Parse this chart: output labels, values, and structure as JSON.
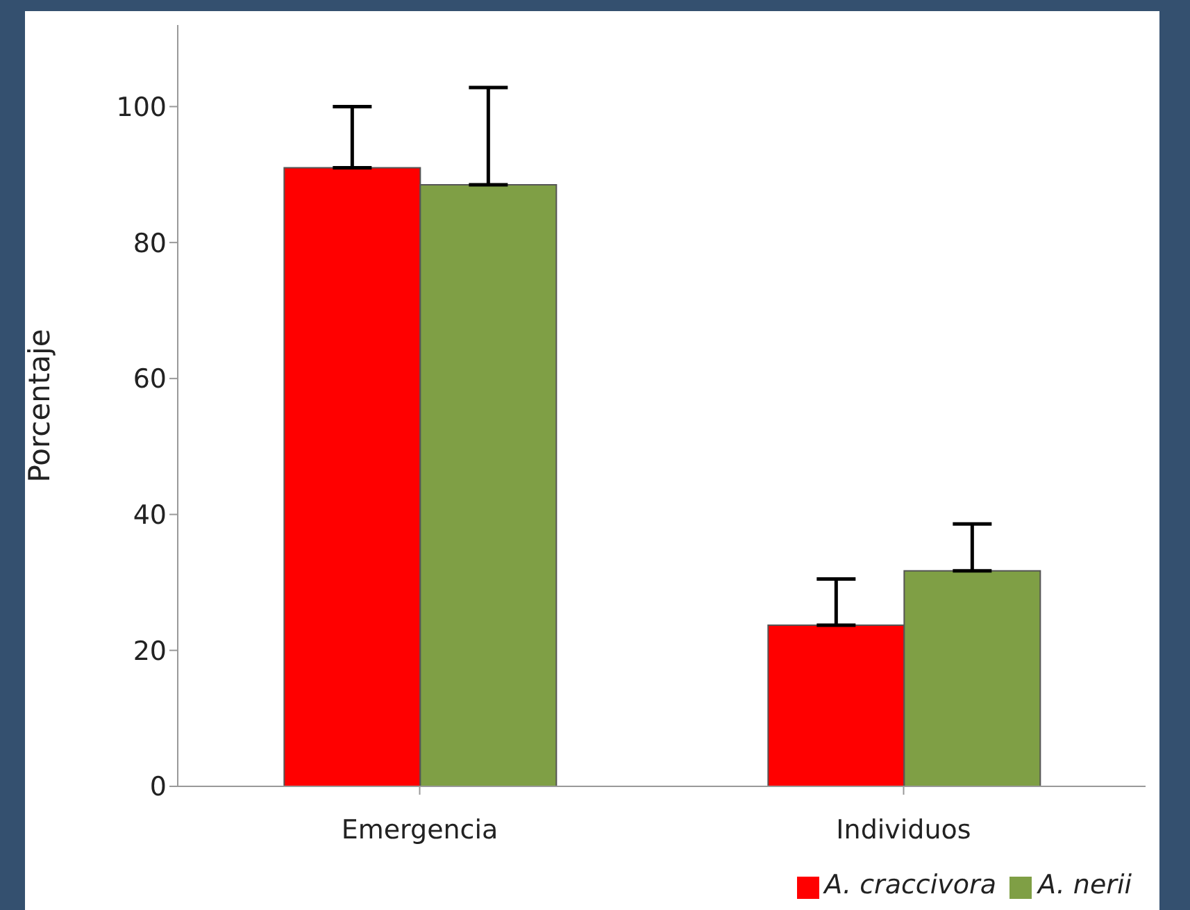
{
  "chart_data": {
    "type": "bar",
    "ylabel": "Porcentaje",
    "categories": [
      "Emergencia",
      "Individuos"
    ],
    "series": [
      {
        "name": "A. craccivora",
        "color": "#ff0000",
        "values": [
          91,
          23.7
        ],
        "errors": [
          [
            91,
            100
          ],
          [
            23.7,
            30.5
          ]
        ]
      },
      {
        "name": "A. nerii",
        "color": "#7f9f45",
        "values": [
          88.5,
          31.7
        ],
        "errors": [
          [
            88.5,
            102.8
          ],
          [
            31.7,
            38.6
          ]
        ]
      }
    ],
    "ylim": [
      0,
      112
    ],
    "yticks": [
      0,
      20,
      40,
      60,
      80,
      100
    ],
    "grid": false,
    "legend": "bottom right"
  }
}
